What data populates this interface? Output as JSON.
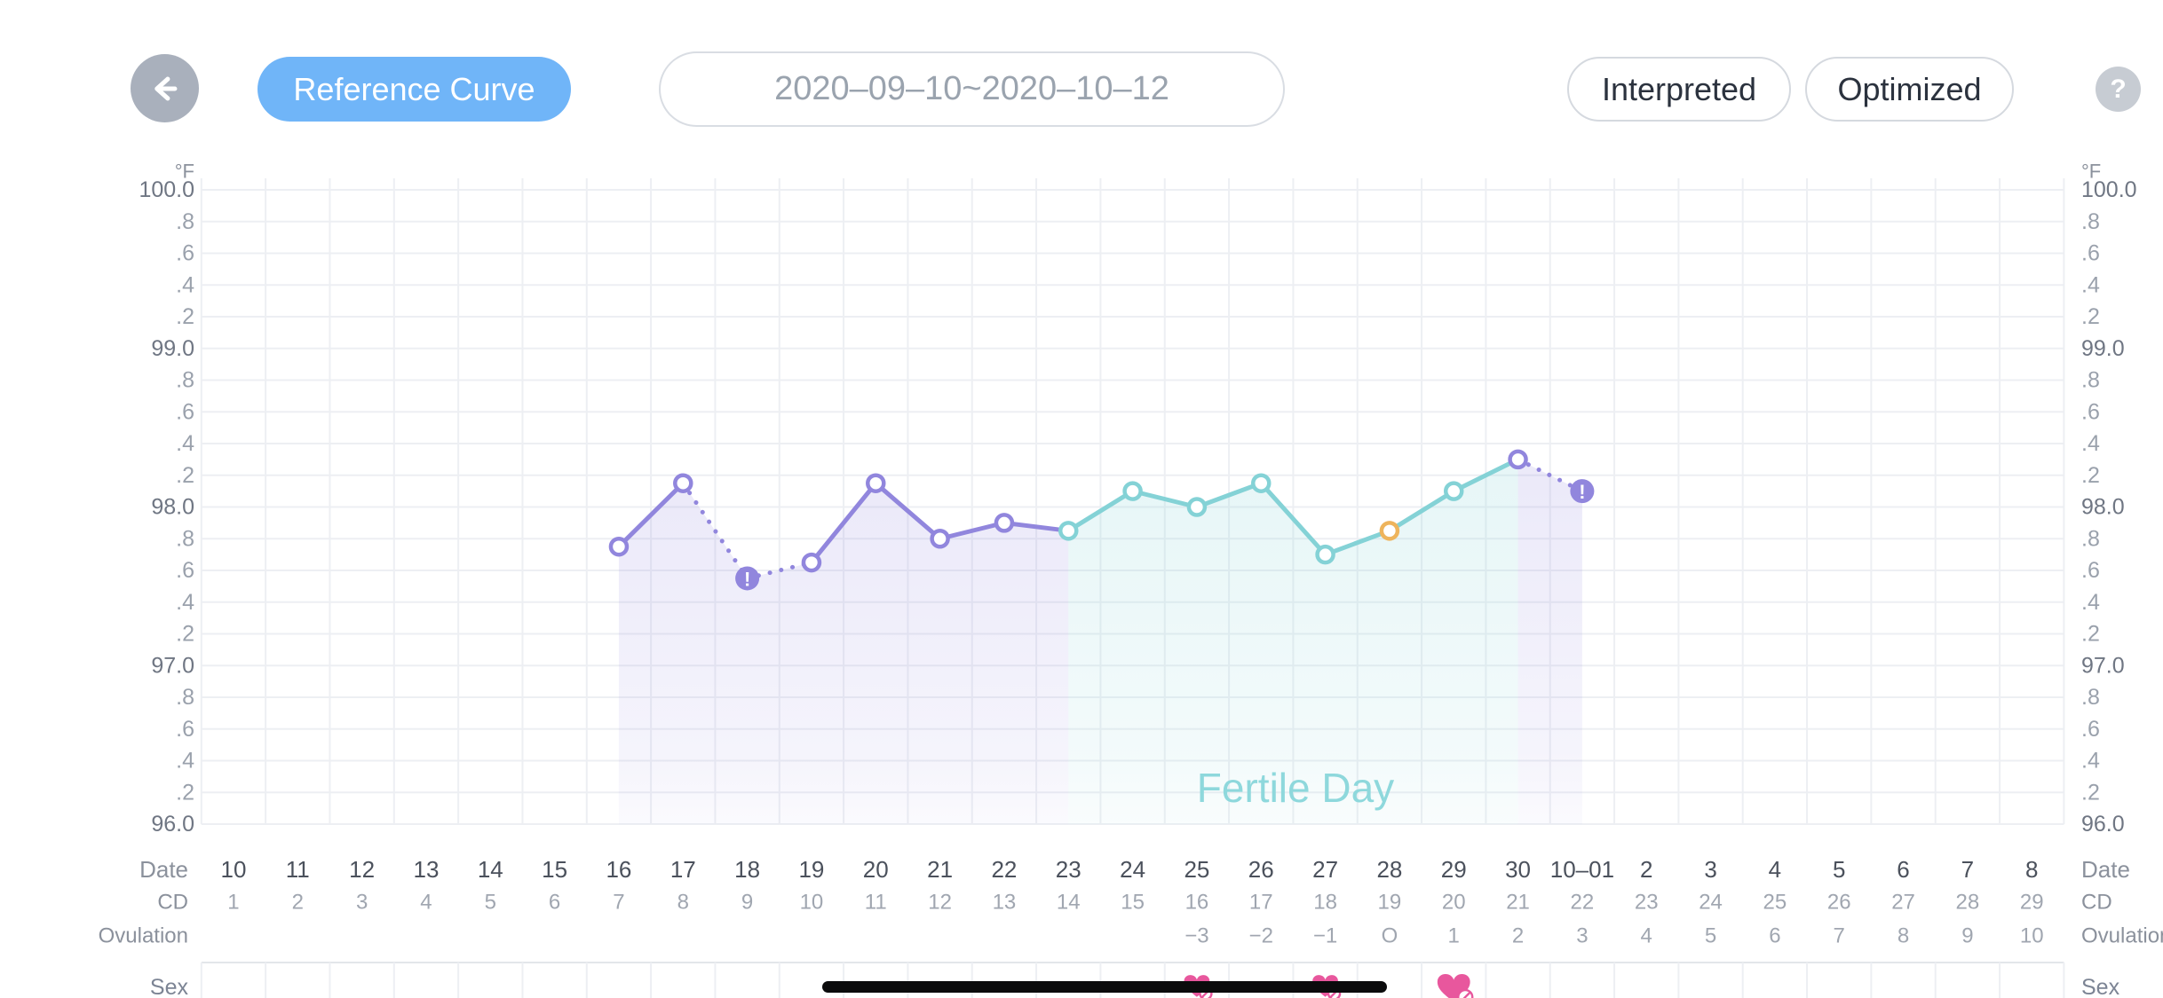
{
  "toolbar": {
    "reference_curve": "Reference Curve",
    "date_range": "2020–09–10~2020–10–12",
    "interpreted": "Interpreted",
    "optimized": "Optimized",
    "help": "?"
  },
  "colors": {
    "accent_blue": "#70b5f8",
    "purple": "#9186dd",
    "teal": "#84d2d6",
    "orange": "#eeb45c",
    "pink": "#e8579d",
    "grid": "#edeff3",
    "sex_border": "#e3e6ea",
    "axis_major": "#6f7683",
    "axis_minor": "#9aa1ac",
    "date_text": "#4b515c",
    "sub_text": "#a0a6b0",
    "row_label": "#8b919c",
    "fertile_text": "#8ed8dc",
    "home_bar": "#0b0b0c"
  },
  "chart_data": {
    "type": "line",
    "unit": "°F",
    "ylim": [
      96.0,
      100.0
    ],
    "ytick_step": 0.2,
    "ytick_labels": [
      "100.0",
      ".8",
      ".6",
      ".4",
      ".2",
      "99.0",
      ".8",
      ".6",
      ".4",
      ".2",
      "98.0",
      ".8",
      ".6",
      ".4",
      ".2",
      "97.0",
      ".8",
      ".6",
      ".4",
      ".2",
      "96.0"
    ],
    "fertile_label": "Fertile Day",
    "row_labels": {
      "date": "Date",
      "cd": "CD",
      "ovulation": "Ovulation",
      "sex": "Sex"
    },
    "columns": [
      {
        "date": "10",
        "cd": "1",
        "ov": ""
      },
      {
        "date": "11",
        "cd": "2",
        "ov": ""
      },
      {
        "date": "12",
        "cd": "3",
        "ov": ""
      },
      {
        "date": "13",
        "cd": "4",
        "ov": ""
      },
      {
        "date": "14",
        "cd": "5",
        "ov": ""
      },
      {
        "date": "15",
        "cd": "6",
        "ov": ""
      },
      {
        "date": "16",
        "cd": "7",
        "ov": ""
      },
      {
        "date": "17",
        "cd": "8",
        "ov": ""
      },
      {
        "date": "18",
        "cd": "9",
        "ov": ""
      },
      {
        "date": "19",
        "cd": "10",
        "ov": ""
      },
      {
        "date": "20",
        "cd": "11",
        "ov": ""
      },
      {
        "date": "21",
        "cd": "12",
        "ov": ""
      },
      {
        "date": "22",
        "cd": "13",
        "ov": ""
      },
      {
        "date": "23",
        "cd": "14",
        "ov": ""
      },
      {
        "date": "24",
        "cd": "15",
        "ov": ""
      },
      {
        "date": "25",
        "cd": "16",
        "ov": "−3"
      },
      {
        "date": "26",
        "cd": "17",
        "ov": "−2"
      },
      {
        "date": "27",
        "cd": "18",
        "ov": "−1"
      },
      {
        "date": "28",
        "cd": "19",
        "ov": "O"
      },
      {
        "date": "29",
        "cd": "20",
        "ov": "1"
      },
      {
        "date": "30",
        "cd": "21",
        "ov": "2"
      },
      {
        "date": "10–01",
        "cd": "22",
        "ov": "3"
      },
      {
        "date": "2",
        "cd": "23",
        "ov": "4"
      },
      {
        "date": "3",
        "cd": "24",
        "ov": "5"
      },
      {
        "date": "4",
        "cd": "25",
        "ov": "6"
      },
      {
        "date": "5",
        "cd": "26",
        "ov": "7"
      },
      {
        "date": "6",
        "cd": "27",
        "ov": "8"
      },
      {
        "date": "7",
        "cd": "28",
        "ov": "9"
      },
      {
        "date": "8",
        "cd": "29",
        "ov": "10"
      }
    ],
    "points": [
      {
        "col": 6,
        "temp": 97.75,
        "marker": "normal-purple",
        "link": "solid-purple"
      },
      {
        "col": 7,
        "temp": 98.15,
        "marker": "normal-purple",
        "link": "dotted-purple"
      },
      {
        "col": 8,
        "temp": 97.55,
        "marker": "excluded",
        "link": "dotted-purple"
      },
      {
        "col": 9,
        "temp": 97.65,
        "marker": "normal-purple",
        "link": "solid-purple"
      },
      {
        "col": 10,
        "temp": 98.15,
        "marker": "normal-purple",
        "link": "solid-purple"
      },
      {
        "col": 11,
        "temp": 97.8,
        "marker": "normal-purple",
        "link": "solid-purple"
      },
      {
        "col": 12,
        "temp": 97.9,
        "marker": "normal-purple",
        "link": "solid-purple"
      },
      {
        "col": 13,
        "temp": 97.85,
        "marker": "normal-teal",
        "link": "solid-teal"
      },
      {
        "col": 14,
        "temp": 98.1,
        "marker": "normal-teal",
        "link": "solid-teal"
      },
      {
        "col": 15,
        "temp": 98.0,
        "marker": "normal-teal",
        "link": "solid-teal"
      },
      {
        "col": 16,
        "temp": 98.15,
        "marker": "normal-teal",
        "link": "solid-teal"
      },
      {
        "col": 17,
        "temp": 97.7,
        "marker": "normal-teal",
        "link": "solid-teal"
      },
      {
        "col": 18,
        "temp": 97.85,
        "marker": "ovulation",
        "link": "solid-teal"
      },
      {
        "col": 19,
        "temp": 98.1,
        "marker": "normal-teal",
        "link": "solid-teal"
      },
      {
        "col": 20,
        "temp": 98.3,
        "marker": "normal-purple",
        "link": "dotted-purple"
      },
      {
        "col": 21,
        "temp": 98.1,
        "marker": "excluded",
        "link": "none"
      }
    ],
    "areas": [
      {
        "from_col": 6,
        "to_col": 13,
        "color": "purple"
      },
      {
        "from_col": 13,
        "to_col": 20,
        "color": "teal"
      },
      {
        "from_col": 20,
        "to_col": 21,
        "color": "purple"
      }
    ],
    "sex_marks": [
      {
        "col": 15,
        "size": "small"
      },
      {
        "col": 17,
        "size": "small"
      },
      {
        "col": 19,
        "size": "large"
      }
    ]
  }
}
